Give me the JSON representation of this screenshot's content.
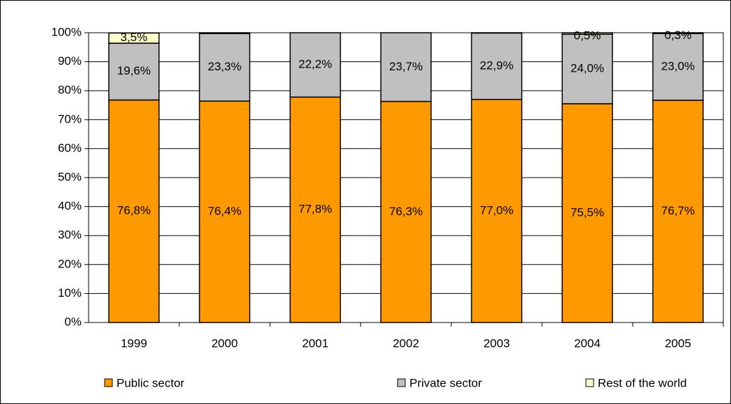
{
  "chart_data": {
    "type": "stacked-bar",
    "categories": [
      "1999",
      "2000",
      "2001",
      "2002",
      "2003",
      "2004",
      "2005"
    ],
    "series": [
      {
        "name": "Public sector",
        "color": "#ff9900",
        "values": [
          76.8,
          76.4,
          77.8,
          76.3,
          77.0,
          75.5,
          76.7
        ],
        "value_labels": [
          "76,8%",
          "76,4%",
          "77,8%",
          "76,3%",
          "77,0%",
          "75,5%",
          "76,7%"
        ]
      },
      {
        "name": "Private sector",
        "color": "#c0c0c0",
        "values": [
          19.6,
          23.3,
          22.2,
          23.7,
          22.9,
          24.0,
          23.0
        ],
        "value_labels": [
          "19,6%",
          "23,3%",
          "22,2%",
          "23,7%",
          "22,9%",
          "24,0%",
          "23,0%"
        ]
      },
      {
        "name": "Rest of the world",
        "color": "#ffffcc",
        "values": [
          3.5,
          0.3,
          0,
          0,
          0.1,
          0.5,
          0.3
        ],
        "value_labels": [
          "3,5%",
          null,
          null,
          null,
          null,
          "0,5%",
          "0,3%"
        ]
      }
    ],
    "ylim": [
      0,
      100
    ],
    "yticks": [
      {
        "value": 0,
        "label": "0%"
      },
      {
        "value": 10,
        "label": "10%"
      },
      {
        "value": 20,
        "label": "20%"
      },
      {
        "value": 30,
        "label": "30%"
      },
      {
        "value": 40,
        "label": "40%"
      },
      {
        "value": 50,
        "label": "50%"
      },
      {
        "value": 60,
        "label": "60%"
      },
      {
        "value": 70,
        "label": "70%"
      },
      {
        "value": 80,
        "label": "80%"
      },
      {
        "value": 90,
        "label": "90%"
      },
      {
        "value": 100,
        "label": "100%"
      }
    ],
    "grid": true,
    "legend": "bottom"
  }
}
